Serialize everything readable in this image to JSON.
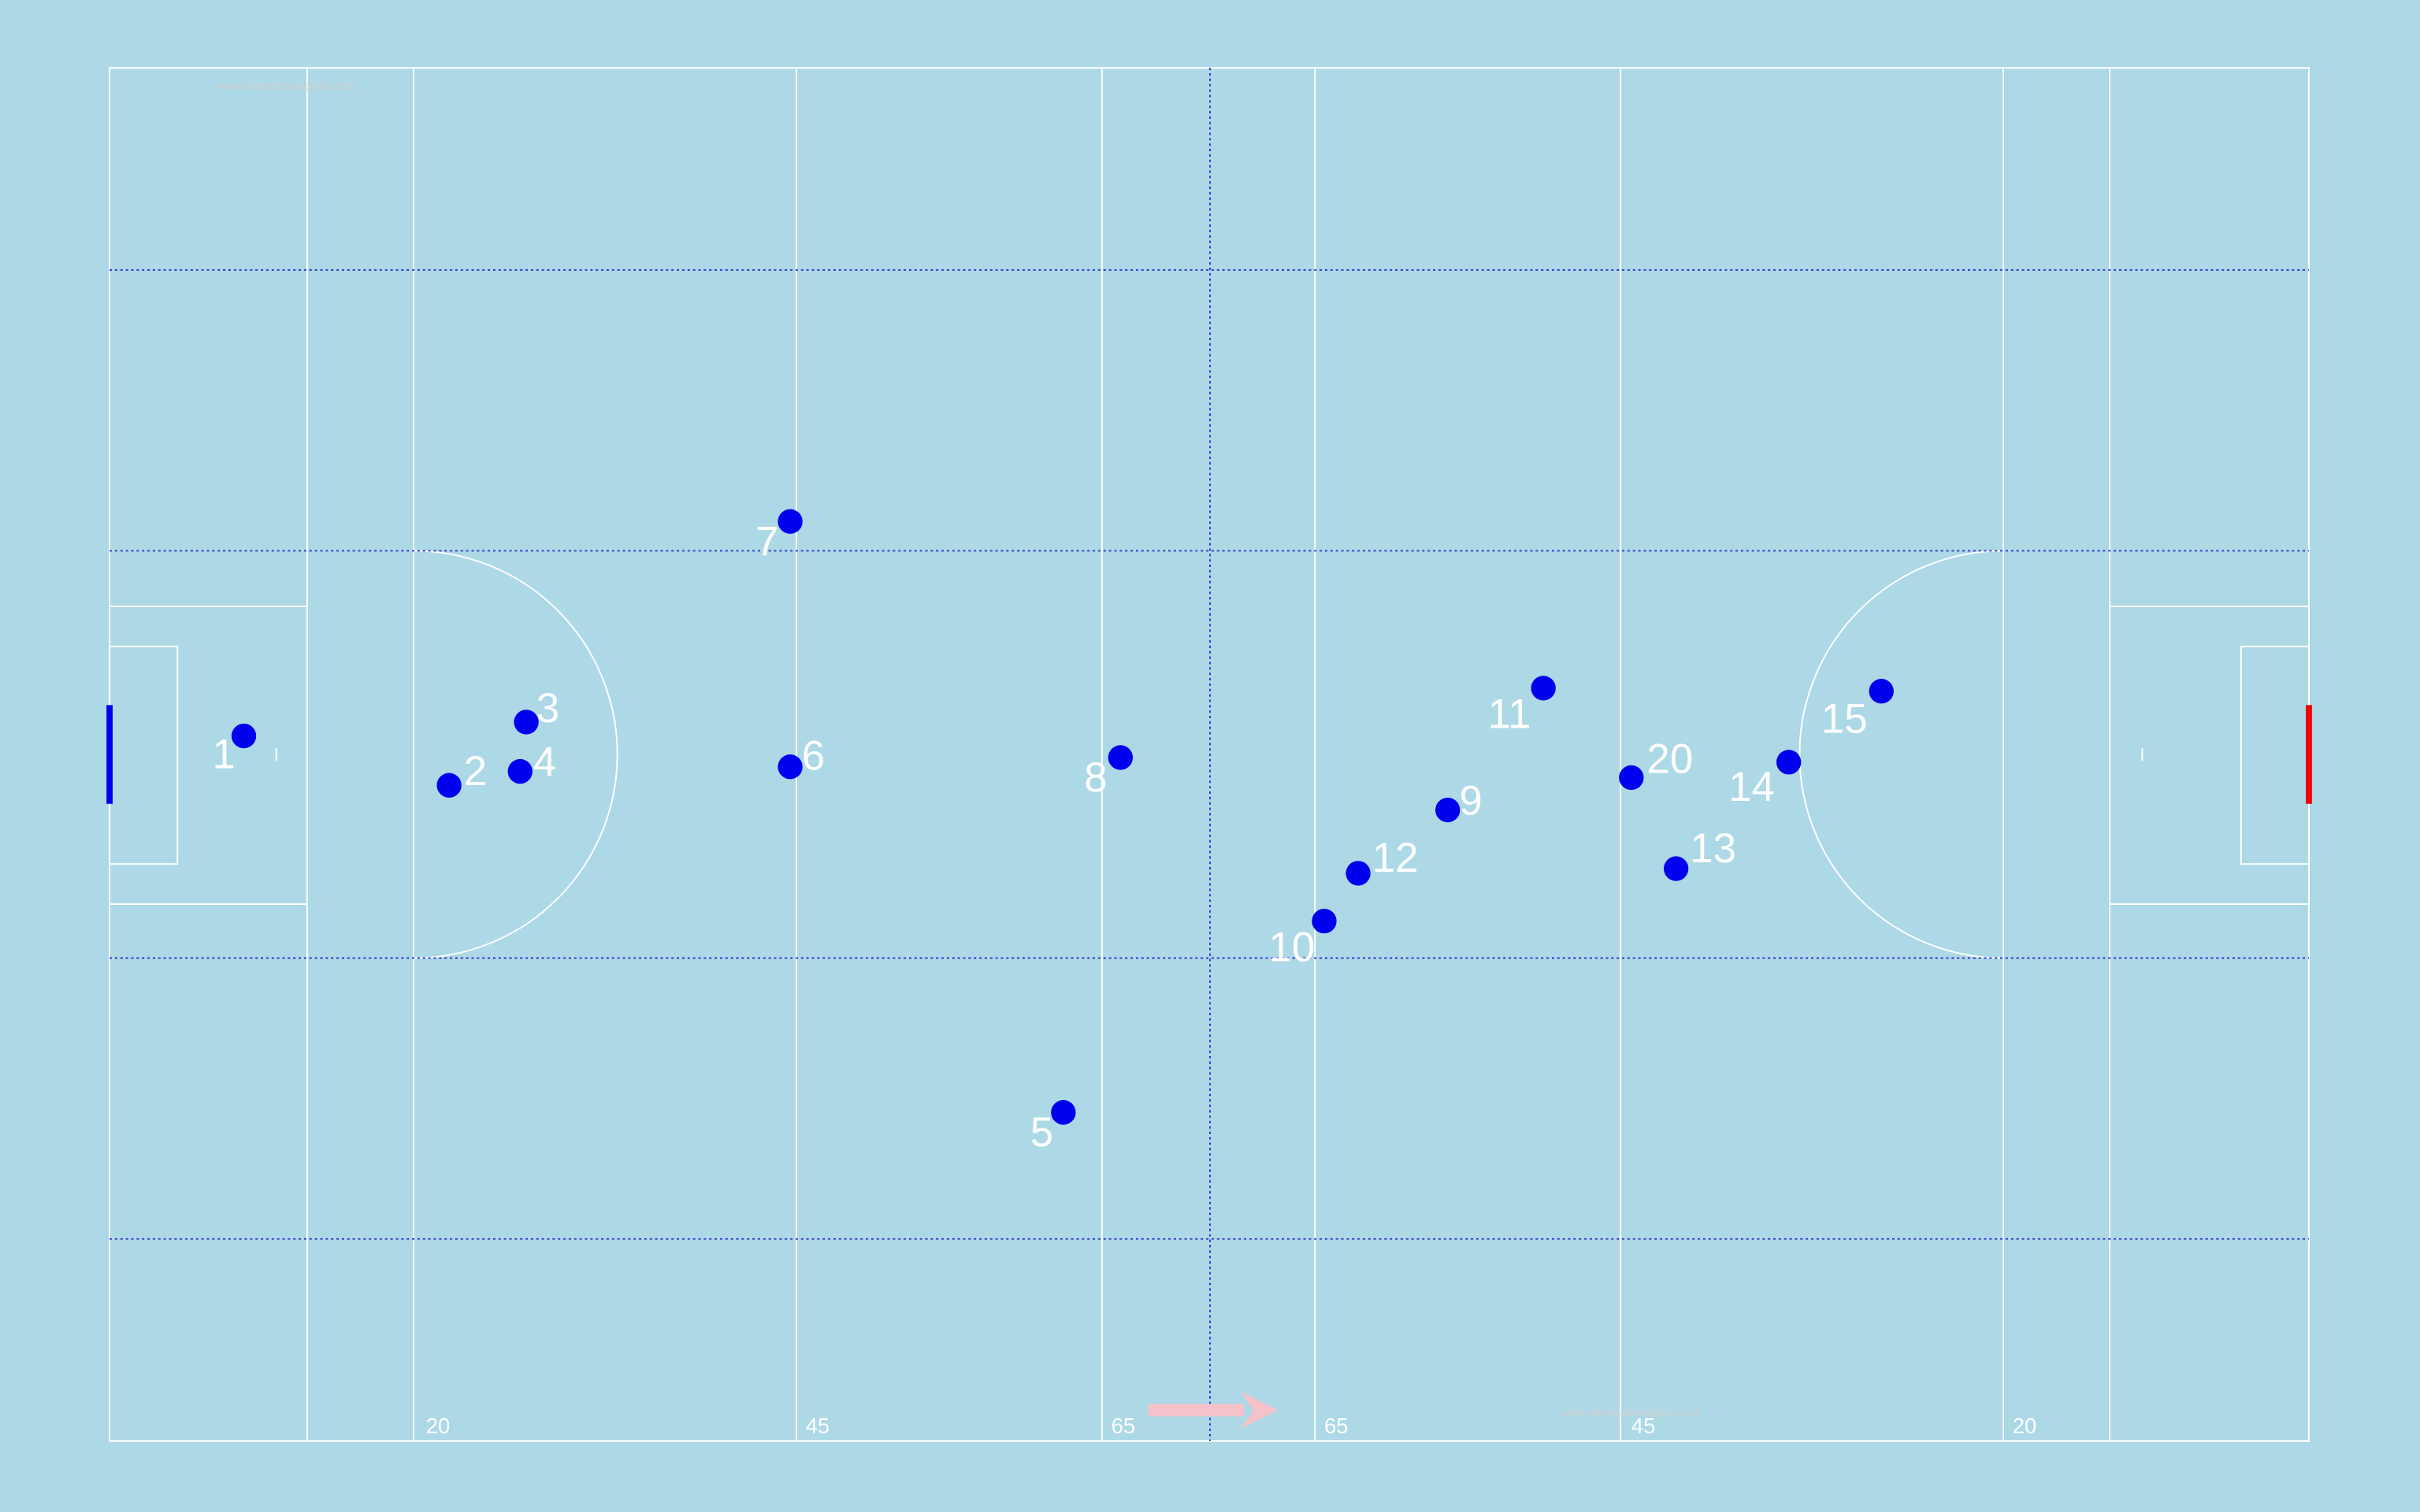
{
  "pitch": {
    "line_labels": [
      "20",
      "45",
      "65",
      "65",
      "45",
      "20"
    ],
    "watermarks": [
      "www.witnesstheanalysis.com",
      "www.witnesstheanalysis.com"
    ]
  },
  "players": [
    "1",
    "2",
    "3",
    "4",
    "5",
    "6",
    "7",
    "8",
    "9",
    "10",
    "11",
    "12",
    "13",
    "14",
    "15",
    "20"
  ]
}
